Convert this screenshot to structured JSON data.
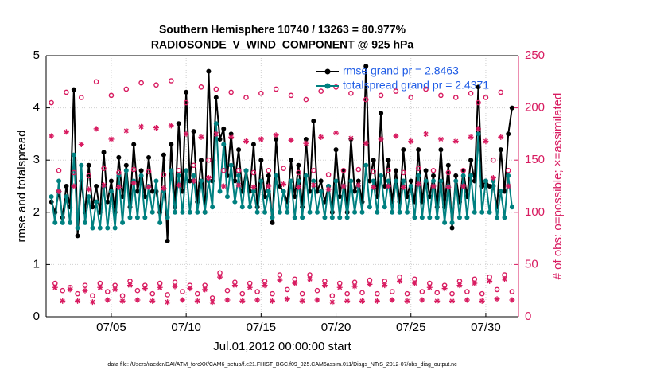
{
  "chart_data": {
    "type": "line",
    "title": "Southern Hemisphere 10740 / 13263 = 80.977%",
    "subtitle": "RADIOSONDE_V_WIND_COMPONENT @ 925 hPa",
    "xlabel": "Jul.01,2012 00:00:00 start",
    "ylabel": "rmse and totalspread",
    "y2label": "# of obs: o=possible; ×=assimilated",
    "footnote": "data file: /Users/raeder/DAI/ATM_forcXX/CAM6_setup/f.e21.FHIST_BGC.f09_025.CAM6assim.011/Diags_NTrS_2012-07/obs_diag_output.nc",
    "xlim": [
      0.65,
      32.18
    ],
    "ylim": [
      0,
      5
    ],
    "y2lim": [
      0,
      250
    ],
    "xticks": [
      {
        "value": 5,
        "label": "07/05"
      },
      {
        "value": 10,
        "label": "07/10"
      },
      {
        "value": 15,
        "label": "07/15"
      },
      {
        "value": 20,
        "label": "07/20"
      },
      {
        "value": 25,
        "label": "07/25"
      },
      {
        "value": 30,
        "label": "07/30"
      }
    ],
    "yticks": [
      0,
      1,
      2,
      3,
      4,
      5
    ],
    "y2ticks": [
      0,
      50,
      100,
      150,
      200,
      250
    ],
    "grid": true,
    "legend": "northeast",
    "legend_text_color": "#1f5ce6",
    "x": [
      1,
      1.25,
      1.5,
      1.75,
      2,
      2.25,
      2.5,
      2.75,
      3,
      3.25,
      3.5,
      3.75,
      4,
      4.25,
      4.5,
      4.75,
      5,
      5.25,
      5.5,
      5.75,
      6,
      6.25,
      6.5,
      6.75,
      7,
      7.25,
      7.5,
      7.75,
      8,
      8.25,
      8.5,
      8.75,
      9,
      9.25,
      9.5,
      9.75,
      10,
      10.25,
      10.5,
      10.75,
      11,
      11.25,
      11.5,
      11.75,
      12,
      12.25,
      12.5,
      12.75,
      13,
      13.25,
      13.5,
      13.75,
      14,
      14.25,
      14.5,
      14.75,
      15,
      15.25,
      15.5,
      15.75,
      16,
      16.25,
      16.5,
      16.75,
      17,
      17.25,
      17.5,
      17.75,
      18,
      18.25,
      18.5,
      18.75,
      19,
      19.25,
      19.5,
      19.75,
      20,
      20.25,
      20.5,
      20.75,
      21,
      21.25,
      21.5,
      21.75,
      22,
      22.25,
      22.5,
      22.75,
      23,
      23.25,
      23.5,
      23.75,
      24,
      24.25,
      24.5,
      24.75,
      25,
      25.25,
      25.5,
      25.75,
      26,
      26.25,
      26.5,
      26.75,
      27,
      27.25,
      27.5,
      27.75,
      28,
      28.25,
      28.5,
      28.75,
      29,
      29.25,
      29.5,
      29.75,
      30,
      30.25,
      30.5,
      30.75,
      31,
      31.25,
      31.5,
      31.75
    ],
    "series": [
      {
        "name": "rmse grand pr = 2.8463",
        "color": "#000000",
        "marker": "dot",
        "line": true,
        "values": [
          2.2,
          2.0,
          2.4,
          1.9,
          2.5,
          2.1,
          4.35,
          1.55,
          2.6,
          2.0,
          2.9,
          2.1,
          2.5,
          2.0,
          3.15,
          2.2,
          2.6,
          2.0,
          3.05,
          2.3,
          2.9,
          2.1,
          3.3,
          2.4,
          2.8,
          2.3,
          3.05,
          2.4,
          2.4,
          2.0,
          3.1,
          1.45,
          3.3,
          2.1,
          3.7,
          2.4,
          4.3,
          2.6,
          3.55,
          2.2,
          3.0,
          2.0,
          4.7,
          2.6,
          4.2,
          3.4,
          3.6,
          2.7,
          3.5,
          2.6,
          3.2,
          2.4,
          2.8,
          2.4,
          3.3,
          2.1,
          3.0,
          2.3,
          2.7,
          1.8,
          3.4,
          2.5,
          2.4,
          2.2,
          3.0,
          2.3,
          2.9,
          2.1,
          3.4,
          2.4,
          3.75,
          2.4,
          2.6,
          2.2,
          2.5,
          2.0,
          3.2,
          2.3,
          2.8,
          2.0,
          3.4,
          2.4,
          2.6,
          2.2,
          4.8,
          2.6,
          3.0,
          2.3,
          3.9,
          2.5,
          3.0,
          2.2,
          2.8,
          2.2,
          3.2,
          2.3,
          2.6,
          2.2,
          3.2,
          2.2,
          2.8,
          2.3,
          2.7,
          2.1,
          3.2,
          2.1,
          2.9,
          1.7,
          2.7,
          2.2,
          2.8,
          2.3,
          3.0,
          2.6,
          4.4,
          2.5,
          2.6,
          2.5,
          2.5,
          2.1,
          3.2,
          2.4,
          3.5,
          4.0
        ]
      },
      {
        "name": "totalspread grand pr = 2.4371",
        "color": "#008080",
        "marker": "dot",
        "line": true,
        "values": [
          2.3,
          1.8,
          2.6,
          1.8,
          2.3,
          1.8,
          3.1,
          1.7,
          2.9,
          1.8,
          2.3,
          1.7,
          2.2,
          1.7,
          2.5,
          1.7,
          2.4,
          1.7,
          2.7,
          1.8,
          2.8,
          1.9,
          2.6,
          1.9,
          2.7,
          1.9,
          2.5,
          2.0,
          2.6,
          1.8,
          2.4,
          1.9,
          2.8,
          2.0,
          2.7,
          2.0,
          2.8,
          2.0,
          2.7,
          2.0,
          2.6,
          2.0,
          2.6,
          2.1,
          3.7,
          2.4,
          3.3,
          2.3,
          2.9,
          2.2,
          2.7,
          2.1,
          2.8,
          2.1,
          2.4,
          2.0,
          2.6,
          2.0,
          2.4,
          1.9,
          2.7,
          2.0,
          2.4,
          2.0,
          2.6,
          1.9,
          2.6,
          1.9,
          2.7,
          2.0,
          2.6,
          2.0,
          2.4,
          1.9,
          2.5,
          1.9,
          2.6,
          1.9,
          2.5,
          1.9,
          2.6,
          2.0,
          2.5,
          2.0,
          2.9,
          2.1,
          2.6,
          2.0,
          2.7,
          2.1,
          2.6,
          2.0,
          2.6,
          2.0,
          2.6,
          2.0,
          2.5,
          1.9,
          2.7,
          1.9,
          2.6,
          1.9,
          2.6,
          1.9,
          2.6,
          1.8,
          2.5,
          1.8,
          2.6,
          1.9,
          2.7,
          1.9,
          2.7,
          2.0,
          3.5,
          2.0,
          2.6,
          2.0,
          2.6,
          1.9,
          2.4,
          1.9,
          2.7,
          2.1
        ]
      },
      {
        "color": "#d81b60",
        "marker": "circle",
        "line": false,
        "axis": "y2",
        "values": [
          205,
          32,
          140,
          25,
          215,
          28,
          138,
          22,
          210,
          30,
          135,
          20,
          225,
          32,
          142,
          24,
          212,
          30,
          138,
          20,
          218,
          34,
          141,
          25,
          224,
          30,
          139,
          22,
          222,
          32,
          136,
          21,
          226,
          33,
          140,
          24,
          205,
          30,
          145,
          22,
          220,
          30,
          150,
          18,
          218,
          42,
          140,
          25,
          215,
          33,
          140,
          22,
          210,
          32,
          138,
          24,
          214,
          34,
          140,
          22,
          218,
          40,
          142,
          26,
          212,
          36,
          138,
          22,
          208,
          40,
          140,
          25,
          216,
          34,
          136,
          20,
          220,
          32,
          140,
          22,
          214,
          33,
          141,
          23,
          208,
          35,
          139,
          22,
          212,
          34,
          140,
          24,
          216,
          38,
          138,
          22,
          210,
          36,
          142,
          24,
          218,
          32,
          140,
          23,
          212,
          30,
          138,
          22,
          210,
          34,
          140,
          24,
          214,
          36,
          205,
          22,
          210,
          38,
          150,
          26,
          215,
          40,
          140,
          24
        ]
      },
      {
        "color": "#d81b60",
        "marker": "asterisk",
        "line": false,
        "axis": "y2",
        "values": [
          173,
          28,
          120,
          15,
          177,
          26,
          125,
          15,
          165,
          25,
          122,
          14,
          180,
          28,
          126,
          16,
          170,
          26,
          124,
          15,
          178,
          30,
          128,
          16,
          182,
          27,
          124,
          15,
          181,
          28,
          123,
          14,
          183,
          29,
          126,
          16,
          175,
          27,
          130,
          15,
          172,
          26,
          133,
          14,
          175,
          38,
          125,
          16,
          172,
          30,
          126,
          15,
          168,
          28,
          124,
          16,
          170,
          30,
          125,
          15,
          174,
          35,
          127,
          17,
          169,
          32,
          124,
          15,
          166,
          36,
          126,
          16,
          172,
          30,
          122,
          14,
          176,
          28,
          125,
          15,
          171,
          29,
          126,
          15,
          166,
          31,
          124,
          15,
          170,
          30,
          125,
          16,
          173,
          34,
          124,
          15,
          168,
          32,
          127,
          16,
          175,
          28,
          125,
          15,
          170,
          27,
          124,
          15,
          168,
          30,
          125,
          16,
          172,
          32,
          180,
          15,
          168,
          34,
          133,
          17,
          172,
          36,
          125,
          16
        ]
      }
    ]
  }
}
